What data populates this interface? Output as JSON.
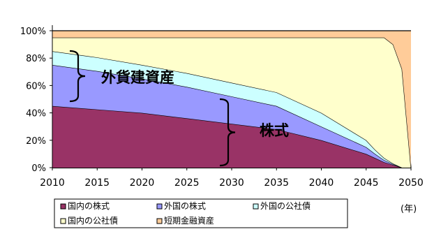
{
  "chart_data": {
    "type": "area",
    "stacked": true,
    "x": [
      2010,
      2015,
      2020,
      2025,
      2030,
      2035,
      2040,
      2045,
      2046,
      2047,
      2048,
      2049,
      2050
    ],
    "xlim": [
      2010,
      2050
    ],
    "ylim": [
      0,
      100
    ],
    "y_unit": "%",
    "x_ticks": [
      "2010",
      "2015",
      "2020",
      "2025",
      "2030",
      "2035",
      "2040",
      "2045",
      "2050"
    ],
    "y_ticks": [
      "0%",
      "20%",
      "40%",
      "60%",
      "80%",
      "100%"
    ],
    "x_unit_label": "(年)",
    "grid": false,
    "legend_position": "bottom",
    "series": [
      {
        "name": "国内の株式",
        "color": "#993366",
        "values": [
          45,
          42.5,
          40,
          36,
          32,
          28,
          20,
          10,
          7,
          4,
          2,
          0,
          0
        ]
      },
      {
        "name": "外国の株式",
        "color": "#9999ff",
        "values": [
          30,
          28,
          25,
          23,
          20,
          17,
          10,
          5,
          3,
          1.5,
          0.5,
          0,
          0
        ]
      },
      {
        "name": "外国の公社債",
        "color": "#ccffff",
        "values": [
          10,
          10,
          10,
          10,
          10,
          10,
          10,
          5,
          3,
          1.5,
          0.5,
          0,
          0
        ]
      },
      {
        "name": "国内の公社債",
        "color": "#ffffcc",
        "values": [
          10,
          14.5,
          20,
          26,
          33,
          40,
          55,
          75,
          82,
          88,
          87,
          72,
          0
        ]
      },
      {
        "name": "短期金融資産",
        "color": "#ffcc99",
        "values": [
          5,
          5,
          5,
          5,
          5,
          5,
          5,
          5,
          5,
          5,
          10,
          28,
          100
        ]
      }
    ],
    "annotations": [
      {
        "text": "外貨建資産"
      },
      {
        "text": "株式"
      }
    ]
  }
}
